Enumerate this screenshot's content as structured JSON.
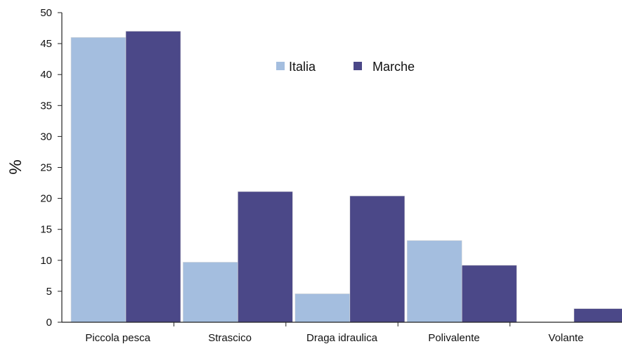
{
  "chart_data": {
    "type": "bar",
    "title": "",
    "xlabel": "",
    "ylabel": "%",
    "ylim": [
      0,
      50
    ],
    "yticks": [
      0,
      5,
      10,
      15,
      20,
      25,
      30,
      35,
      40,
      45,
      50
    ],
    "grid": false,
    "legend_position": "top-center",
    "categories": [
      "Piccola pesca",
      "Strascico",
      "Draga idraulica",
      "Polivalente",
      "Volante"
    ],
    "series": [
      {
        "name": "Italia",
        "color": "#a4bedf",
        "values": [
          46,
          9.7,
          4.6,
          13.2,
          0
        ]
      },
      {
        "name": "Marche",
        "color": "#4b4888",
        "values": [
          47,
          21.1,
          20.4,
          9.2,
          2.2
        ]
      }
    ]
  }
}
